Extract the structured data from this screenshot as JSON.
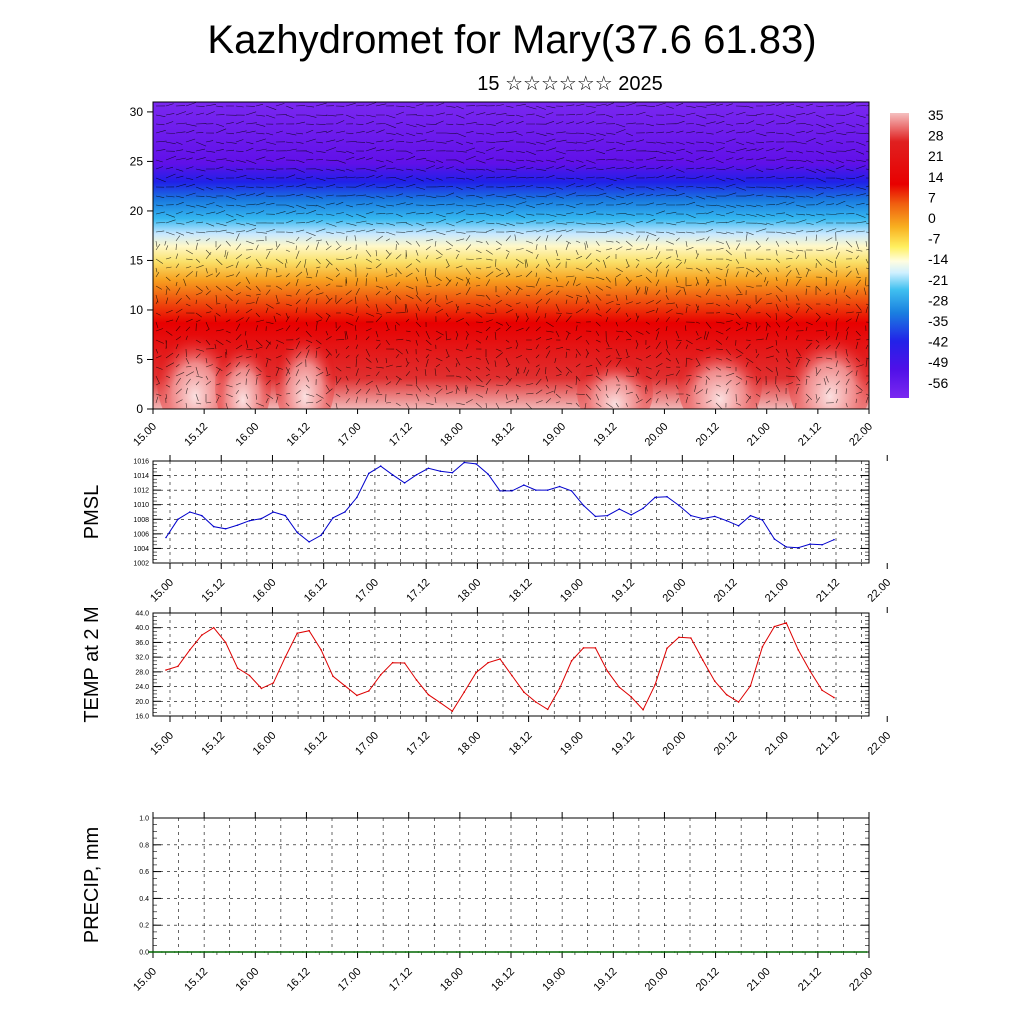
{
  "title": "Kazhydromet for Mary(37.6 61.83)",
  "subtitle": "15 ☆☆☆☆☆☆ 2025",
  "chart_data": [
    {
      "type": "heatmap",
      "name": "temperature cross-section with wind vectors",
      "title": "",
      "xlabel": "",
      "ylabel": "",
      "x_tick_labels": [
        "15.00",
        "15.12",
        "16.00",
        "16.12",
        "17.00",
        "17.12",
        "18.00",
        "18.12",
        "19.00",
        "19.12",
        "20.00",
        "20.12",
        "21.00",
        "21.12",
        "22.00"
      ],
      "y_ticks": [
        0,
        5,
        10,
        15,
        20,
        25,
        30
      ],
      "y_tick_labels": [
        "0",
        "5",
        "10",
        "15",
        "20",
        "25",
        "30"
      ],
      "ylim": [
        0,
        31
      ],
      "colorbar": {
        "labels": [
          "35",
          "28",
          "21",
          "14",
          "7",
          "0",
          "-7",
          "-14",
          "-21",
          "-28",
          "-35",
          "-42",
          "-49",
          "-56"
        ],
        "range": [
          -63,
          42
        ]
      }
    },
    {
      "type": "line",
      "ylabel": "PMSL",
      "ylim": [
        1002,
        1016
      ],
      "y_tick_labels": [
        "1016",
        "1014",
        "1012",
        "1010",
        "1008",
        "1006",
        "1004",
        "1002"
      ],
      "x_tick_labels": [
        "15.00",
        "15.12",
        "16.00",
        "16.12",
        "17.00",
        "17.12",
        "18.00",
        "18.12",
        "19.00",
        "19.12",
        "20.00",
        "20.12",
        "21.00",
        "21.12",
        "22.00"
      ],
      "color": "#0000cc",
      "values": [
        1005.5,
        1008,
        1009,
        1008.5,
        1007,
        1006.7,
        1007.2,
        1007.8,
        1008.1,
        1009,
        1008.5,
        1006.2,
        1004.9,
        1005.8,
        1008.2,
        1009,
        1011,
        1014.3,
        1015.3,
        1014.1,
        1013,
        1014.1,
        1015,
        1014.6,
        1014.4,
        1015.8,
        1015.6,
        1014.2,
        1011.9,
        1011.9,
        1012.7,
        1012,
        1012,
        1012.5,
        1011.9,
        1009.9,
        1008.4,
        1008.5,
        1009.4,
        1008.6,
        1009.5,
        1011,
        1011.1,
        1009.9,
        1008.5,
        1008.1,
        1008.4,
        1007.8,
        1007.1,
        1008.5,
        1007.9,
        1005.3,
        1004.2,
        1004.1,
        1004.6,
        1004.5,
        1005.2
      ]
    },
    {
      "type": "line",
      "ylabel": "TEMP at 2 M",
      "ylim": [
        16,
        44
      ],
      "y_tick_labels": [
        "44.0",
        "40.0",
        "36.0",
        "32.0",
        "28.0",
        "24.0",
        "20.0",
        "16.0"
      ],
      "x_tick_labels": [
        "15.00",
        "15.12",
        "16.00",
        "16.12",
        "17.00",
        "17.12",
        "18.00",
        "18.12",
        "19.00",
        "19.12",
        "20.00",
        "20.12",
        "21.00",
        "21.12",
        "22.00"
      ],
      "color": "#dd0000",
      "values": [
        28.5,
        29.5,
        34,
        38,
        40,
        36,
        29,
        27,
        23.5,
        25,
        32,
        38.5,
        39.2,
        34,
        26.8,
        24.2,
        21.6,
        22.8,
        27.2,
        30.5,
        30.4,
        25.8,
        21.8,
        19.6,
        17.3,
        22.5,
        27.8,
        30.5,
        31.5,
        27,
        22.5,
        19.8,
        17.8,
        23.5,
        31,
        34.5,
        34.5,
        28.2,
        23.8,
        21.2,
        17.7,
        24.5,
        34.4,
        37.4,
        37.2,
        31.2,
        25.5,
        21.8,
        19.8,
        24.2,
        34.8,
        40.3,
        41.3,
        34,
        28.2,
        23,
        21
      ]
    },
    {
      "type": "line",
      "ylabel": "PRECIP, mm",
      "ylim": [
        0,
        1
      ],
      "y_tick_labels": [
        "1.0",
        "0.8",
        "0.6",
        "0.4",
        "0.2",
        "0.0"
      ],
      "x_tick_labels": [
        "15.00",
        "15.12",
        "16.00",
        "16.12",
        "17.00",
        "17.12",
        "18.00",
        "18.12",
        "19.00",
        "19.12",
        "20.00",
        "20.12",
        "21.00",
        "21.12",
        "22.00"
      ],
      "color": "#006600",
      "values": [
        0,
        0,
        0,
        0,
        0,
        0,
        0,
        0,
        0,
        0,
        0,
        0,
        0,
        0,
        0,
        0,
        0,
        0,
        0,
        0,
        0,
        0,
        0,
        0,
        0,
        0,
        0,
        0,
        0,
        0,
        0,
        0,
        0,
        0,
        0,
        0,
        0,
        0,
        0,
        0,
        0,
        0,
        0,
        0,
        0,
        0,
        0,
        0,
        0,
        0,
        0,
        0,
        0,
        0,
        0,
        0,
        0
      ]
    }
  ]
}
